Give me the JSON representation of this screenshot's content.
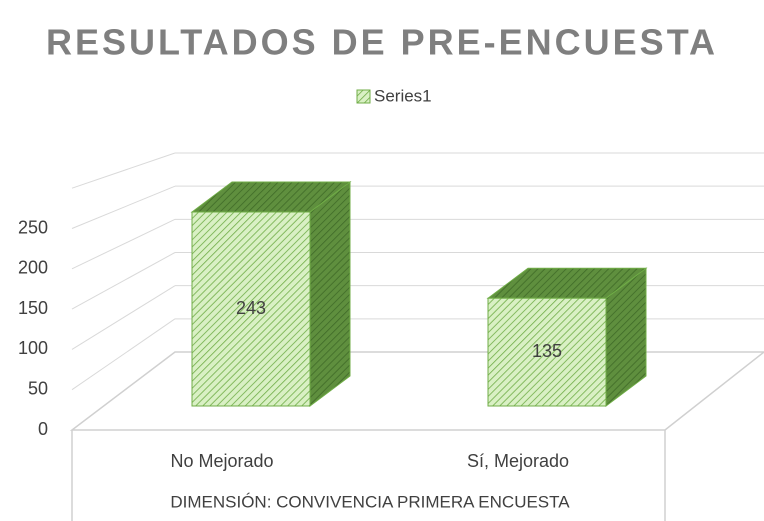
{
  "chart_data": {
    "type": "bar3d",
    "title": "RESULTADOS DE PRE-ENCUESTA",
    "categories": [
      "No Mejorado",
      "Sí, Mejorado"
    ],
    "series": [
      {
        "name": "Series1",
        "color": "#70ad47",
        "values": [
          243,
          135
        ]
      }
    ],
    "x_label": "DIMENSIÓN: CONVIVENCIA PRIMERA ENCUESTA",
    "ylim": [
      0,
      300
    ],
    "yticks": [
      0,
      50,
      100,
      150,
      200,
      250
    ],
    "grid": true,
    "legend": "top"
  }
}
